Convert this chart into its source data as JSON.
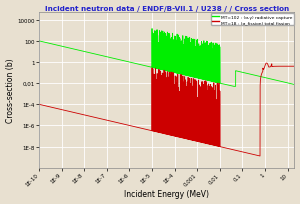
{
  "title": "Incident neutron data / ENDF/B-VII.1 / U238 / / Cross section",
  "title_color": "#2222cc",
  "xlabel": "Incident Energy (MeV)",
  "ylabel": "Cross-section (b)",
  "background_color": "#e8e0d0",
  "plot_bg_color": "#e8e0d0",
  "grid_color": "#ffffff",
  "legend1_label": "MT=102 : (σ,γ) radiative capture",
  "legend2_label": "MT=18 : (σ_fission) total fission",
  "capture_color": "#00ee00",
  "fission_color": "#cc0000",
  "xticks": [
    1e-10,
    1e-09,
    1e-08,
    1e-07,
    1e-06,
    1e-05,
    0.0001,
    0.001,
    0.01,
    0.1,
    1,
    10
  ],
  "xlabels": [
    "1E-10",
    "1E-9",
    "1E-8",
    "1E-7",
    "1E-6",
    "1E-5",
    "1E-4",
    "0,001",
    "0,01",
    "0,1",
    "1",
    "10"
  ],
  "yticks": [
    1e-08,
    1e-06,
    0.0001,
    0.01,
    1,
    100,
    10000
  ],
  "ylabels": [
    "1E-8",
    "1E-6",
    "1E-4",
    "0,01",
    "1",
    "100",
    "10000"
  ],
  "xlim": [
    1e-10,
    20
  ],
  "ylim": [
    1e-10,
    50000
  ]
}
